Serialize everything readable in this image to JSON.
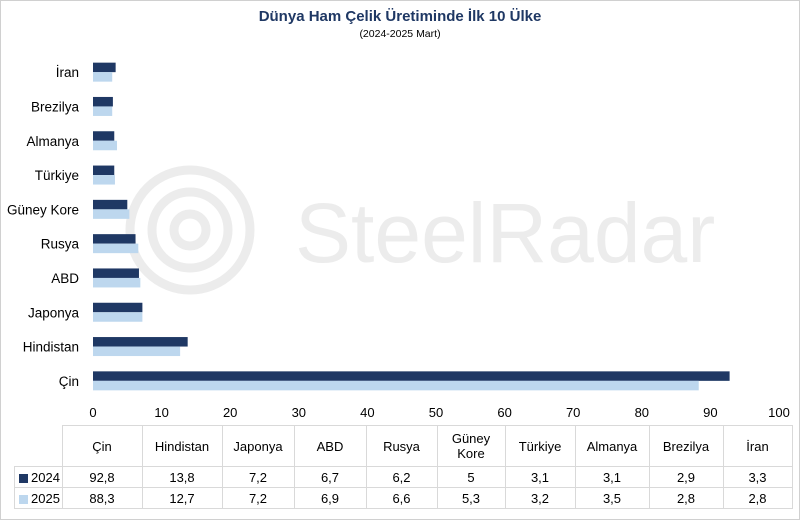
{
  "chart_data": {
    "type": "bar",
    "orientation": "horizontal",
    "title": "Dünya Ham Çelik Üretiminde İlk 10 Ülke",
    "subtitle": "(2024-2025 Mart)",
    "categories": [
      "Çin",
      "Hindistan",
      "Japonya",
      "ABD",
      "Rusya",
      "Güney Kore",
      "Türkiye",
      "Almanya",
      "Brezilya",
      "İran"
    ],
    "table_headers": [
      "Çin",
      "Hindistan",
      "Japonya",
      "ABD",
      "Rusya",
      "Güney\nKore",
      "Türkiye",
      "Almanya",
      "Brezilya",
      "İran"
    ],
    "series": [
      {
        "name": "2024",
        "color": "#1f3864",
        "values": [
          92.8,
          13.8,
          7.2,
          6.7,
          6.2,
          5,
          3.1,
          3.1,
          2.9,
          3.3
        ],
        "labels": [
          "92,8",
          "13,8",
          "7,2",
          "6,7",
          "6,2",
          "5",
          "3,1",
          "3,1",
          "2,9",
          "3,3"
        ]
      },
      {
        "name": "2025",
        "color": "#bdd7ee",
        "values": [
          88.3,
          12.7,
          7.2,
          6.9,
          6.6,
          5.3,
          3.2,
          3.5,
          2.8,
          2.8
        ],
        "labels": [
          "88,3",
          "12,7",
          "7,2",
          "6,9",
          "6,6",
          "5,3",
          "3,2",
          "3,5",
          "2,8",
          "2,8"
        ]
      }
    ],
    "xlim": [
      0,
      100
    ],
    "xticks": [
      0,
      10,
      20,
      30,
      40,
      50,
      60,
      70,
      80,
      90,
      100
    ],
    "grid": false,
    "legend": "table"
  },
  "watermark": {
    "text": "SteelRadar"
  }
}
